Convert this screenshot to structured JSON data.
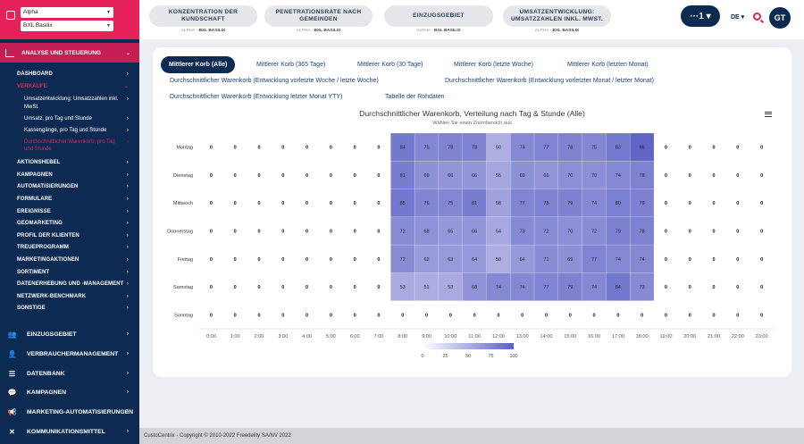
{
  "sidebar": {
    "select1": "Alpha",
    "select2": "BXL Basilix",
    "section": "ANALYSE UND STEUERUNG",
    "nav_top": [
      {
        "label": "DASHBOARD"
      },
      {
        "label": "VERKÄUFE"
      }
    ],
    "sub_items": [
      {
        "label": "Umsatzentwicklung: Umsatzzahlen inkl. MwSt."
      },
      {
        "label": "Umsatz, pro Tag und Stunde"
      },
      {
        "label": "Kassengänge, pro Tag und Stunde"
      },
      {
        "label": "Durchschnittlicher Warenkorb, pro Tag und Stunde"
      }
    ],
    "nav_rest": [
      {
        "label": "AKTIONSHEBEL"
      },
      {
        "label": "KAMPAGNEN"
      },
      {
        "label": "AUTOMATISIERUNGEN"
      },
      {
        "label": "FORMULARE"
      },
      {
        "label": "EREIGNISSE"
      },
      {
        "label": "GEOMARKETING"
      },
      {
        "label": "PROFIL DER KLIENTEN"
      },
      {
        "label": "TREUEPROGRAMM"
      },
      {
        "label": "MARKETINGAKTIONEN"
      },
      {
        "label": "SORTIMENT"
      },
      {
        "label": "DATENERHEBUNG UND -MANAGEMENT"
      },
      {
        "label": "NETZWERK-BENCHMARK"
      },
      {
        "label": "SONSTIGE"
      }
    ],
    "main_items": [
      {
        "label": "EINZUGSGEBIET",
        "icon": "people-icon"
      },
      {
        "label": "VERBRAUCHERMANAGEMENT",
        "icon": "user-icon"
      },
      {
        "label": "DATENBANK",
        "icon": "database-icon"
      },
      {
        "label": "KAMPAGNEN",
        "icon": "chat-icon"
      },
      {
        "label": "MARKETING-AUTOMATISIERUNGEN",
        "icon": "megaphone-icon"
      },
      {
        "label": "KOMMUNIKATIONSMITTEL",
        "icon": "tools-icon"
      }
    ]
  },
  "header": {
    "kpis": [
      {
        "label1": "KONZENTRATION DER",
        "label2": "KUNDSCHAFT",
        "sub_a": "ALPHA",
        "sub_b": "BXL BASILIX"
      },
      {
        "label1": "PENETRATIONSRATE NACH",
        "label2": "GEMEINDEN",
        "sub_a": "ALPHA",
        "sub_b": "BXL BASILIX"
      },
      {
        "label1": "EINZUGSGEBIET",
        "label2": "",
        "sub_a": "ALPHA",
        "sub_b": "BXL BASILIX"
      },
      {
        "label1": "UMSATZENTWICKLUNG:",
        "label2": "UMSATZZAHLEN INKL. MWST.",
        "sub_a": "ALPHA",
        "sub_b": "BXL BASILIX"
      }
    ],
    "button": "···1 ▾",
    "lang": "DE ▾",
    "avatar": "GT"
  },
  "tabs": [
    {
      "label": "Mittlerer Korb (Alle)"
    },
    {
      "label": "Mittlerer Korb (365 Tage)"
    },
    {
      "label": "Mittlerer Korb (30 Tage)"
    },
    {
      "label": "Mittlerer Korb (letzte Woche)"
    },
    {
      "label": "Mittlerer Korb (letzten Monat)"
    },
    {
      "label": "Durchschnittlicher Warenkorb (Entwicklung vorletzte Woche / letzte Woche)"
    },
    {
      "label": "Durchschnittlicher Warenkorb (Entwicklung vorletzter Monat / letzter Monat)"
    },
    {
      "label": "Durchschnittlicher Warenkorb (Entwicklung letzter Monat YTY)"
    },
    {
      "label": "Tabelle der Rohdaten"
    }
  ],
  "footer": "CustoCentrix - Copyright © 2010-2022 Freedelity SA/NV 2022",
  "colors": {
    "low": "#ffffff",
    "high": "#5a5fc4"
  },
  "chart_data": {
    "type": "heatmap",
    "title": "Durchschnittlicher Warenkorb, Verteilung nach Tag & Stunde (Alle)",
    "subtitle": "Wählen Sie einen Zoombereich aus",
    "x": [
      "0:00",
      "1:00",
      "2:00",
      "3:00",
      "4:00",
      "5:00",
      "6:00",
      "7:00",
      "8:00",
      "9:00",
      "10:00",
      "11:00",
      "12:00",
      "13:00",
      "14:00",
      "15:00",
      "16:00",
      "17:00",
      "18:00",
      "19:00",
      "20:00",
      "21:00",
      "22:00",
      "23:00"
    ],
    "y": [
      "Montag",
      "Dienstag",
      "Mittwoch",
      "Donnerstag",
      "Freitag",
      "Samstag",
      "Sonntag"
    ],
    "values": [
      [
        0,
        0,
        0,
        0,
        0,
        0,
        0,
        0,
        84,
        75,
        78,
        78,
        50,
        74,
        77,
        78,
        75,
        83,
        96,
        0,
        0,
        0,
        0,
        0
      ],
      [
        0,
        0,
        0,
        0,
        0,
        0,
        0,
        0,
        81,
        69,
        66,
        66,
        55,
        69,
        66,
        70,
        70,
        74,
        78,
        0,
        0,
        0,
        0,
        0
      ],
      [
        0,
        0,
        0,
        0,
        0,
        0,
        0,
        0,
        85,
        76,
        75,
        81,
        58,
        77,
        78,
        79,
        74,
        80,
        79,
        0,
        0,
        0,
        0,
        0
      ],
      [
        0,
        0,
        0,
        0,
        0,
        0,
        0,
        0,
        72,
        68,
        65,
        66,
        54,
        73,
        72,
        70,
        72,
        79,
        78,
        0,
        0,
        0,
        0,
        0
      ],
      [
        0,
        0,
        0,
        0,
        0,
        0,
        0,
        0,
        72,
        62,
        63,
        64,
        50,
        64,
        71,
        69,
        77,
        74,
        74,
        0,
        0,
        0,
        0,
        0
      ],
      [
        0,
        0,
        0,
        0,
        0,
        0,
        0,
        0,
        53,
        51,
        53,
        68,
        74,
        74,
        77,
        79,
        74,
        84,
        73,
        0,
        0,
        0,
        0,
        0
      ],
      [
        0,
        0,
        0,
        0,
        0,
        0,
        0,
        0,
        0,
        0,
        0,
        0,
        0,
        0,
        0,
        0,
        0,
        0,
        0,
        0,
        0,
        0,
        0,
        0
      ]
    ],
    "scale": [
      0,
      25,
      50,
      75,
      100
    ],
    "range": [
      0,
      100
    ]
  }
}
